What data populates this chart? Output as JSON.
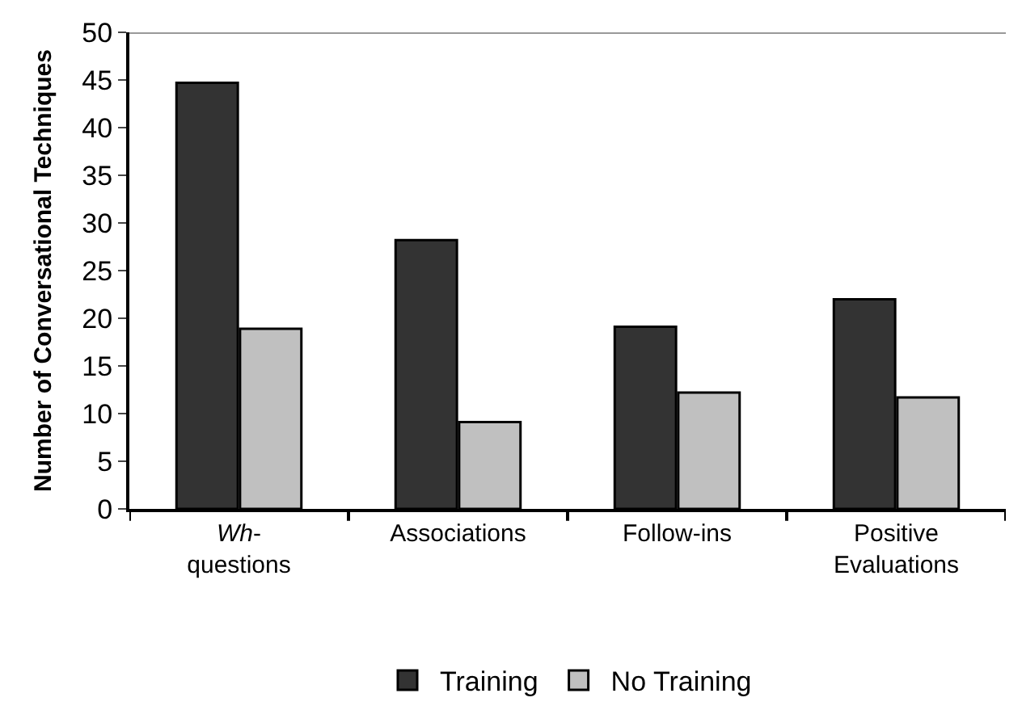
{
  "chart_data": {
    "type": "bar",
    "ylabel": "Number of Conversational Techniques",
    "categories": [
      "Wh-questions",
      "Associations",
      "Follow-ins",
      "Positive Evaluations"
    ],
    "series": [
      {
        "name": "Training",
        "color": "#333333",
        "values": [
          44.7,
          28.2,
          19.1,
          22.0
        ]
      },
      {
        "name": "No Training",
        "color": "#c0c0c0",
        "values": [
          18.9,
          9.1,
          12.2,
          11.7
        ]
      }
    ],
    "ylim": [
      0,
      50
    ],
    "yticks": [
      0,
      5,
      10,
      15,
      20,
      25,
      30,
      35,
      40,
      45,
      50
    ],
    "grid": false,
    "legend": "bottom"
  }
}
